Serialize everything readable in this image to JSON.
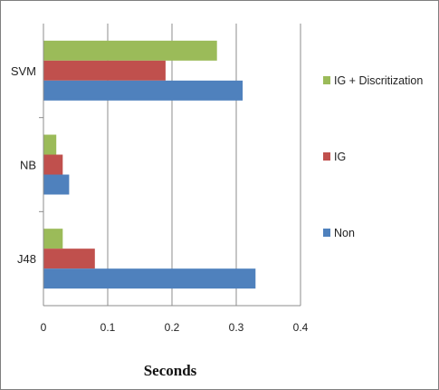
{
  "chart_data": {
    "type": "bar",
    "orientation": "horizontal",
    "title": "",
    "xlabel": "Seconds",
    "ylabel": "",
    "categories": [
      "SVM",
      "NB",
      "J48"
    ],
    "series": [
      {
        "name": "IG + Discritization",
        "color": "#9bbb59",
        "values": [
          0.27,
          0.02,
          0.03
        ]
      },
      {
        "name": "IG",
        "color": "#c0504d",
        "values": [
          0.19,
          0.03,
          0.08
        ]
      },
      {
        "name": "Non",
        "color": "#4f81bd",
        "values": [
          0.31,
          0.04,
          0.33
        ]
      }
    ],
    "xlim": [
      0,
      0.4
    ],
    "xticks": [
      "0",
      "0.1",
      "0.2",
      "0.3",
      "0.4"
    ],
    "grid": "vertical",
    "legend_position": "right"
  }
}
